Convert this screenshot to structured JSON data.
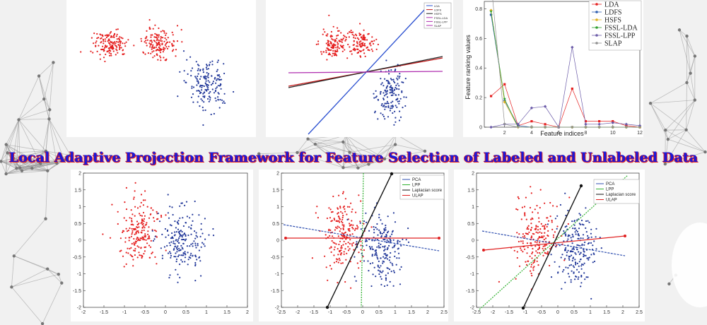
{
  "title": "Local Adaptive Projection Framework for Feature Selection of Labeled and Unlabeled Data",
  "colors": {
    "red": "#e52020",
    "blue": "#23399a",
    "title": "#1a18d8",
    "title_shadow": "#e02020"
  },
  "panels": {
    "p2_legend": [
      "LDA",
      "LDFS",
      "HSFS",
      "FSSL-LDA",
      "FSSL-LPP",
      "SLAP"
    ],
    "p3_legend": [
      "LDA",
      "LDFS",
      "HSFS",
      "FSSL-LDA",
      "FSSL-LPP",
      "SLAP"
    ],
    "p5_legend": [
      "PCA",
      "LPP",
      "Laplacian score",
      "ULAP"
    ],
    "p6_legend": [
      "PCA",
      "LPP",
      "Laplacian score",
      "ULAP"
    ],
    "p4_xticks": [
      "-2",
      "-1.5",
      "-1",
      "-0.5",
      "0",
      "0.5",
      "1",
      "1.5",
      "2"
    ],
    "p4_yticks": [
      "2",
      "1.5",
      "1",
      "0.5",
      "0",
      "-0.5",
      "-1",
      "-1.5",
      "-2"
    ],
    "p5_xticks": [
      "-2.5",
      "-2",
      "-1.5",
      "-1",
      "-0.5",
      "0",
      "0.5",
      "1",
      "1.5",
      "2",
      "2.5"
    ],
    "p5_yticks": [
      "2",
      "1.5",
      "1",
      "0.5",
      "0",
      "-0.5",
      "-1",
      "-1.5",
      "-2"
    ],
    "p6_xticks": [
      "-2.5",
      "-2",
      "-1.5",
      "-1",
      "-0.5",
      "0",
      "0.5",
      "1",
      "1.5",
      "2",
      "2.5"
    ],
    "p6_yticks": [
      "2",
      "1.5",
      "1",
      "0.5",
      "0",
      "-0.5",
      "-1",
      "-1.5",
      "-2"
    ],
    "p3_ylabel": "Feature ranking values",
    "p3_xlabel": "Feature indices",
    "p3_xticks": [
      "2",
      "4",
      "6",
      "8",
      "10",
      "12"
    ],
    "p3_yticks": [
      "0.8",
      "0.6",
      "0.4",
      "0.2",
      "0"
    ]
  },
  "chart_data": [
    {
      "type": "scatter",
      "series": [
        {
          "name": "",
          "color": "#e52020"
        },
        {
          "name": "",
          "color": "#23399a"
        }
      ]
    },
    {
      "type": "scatter",
      "legend": [
        "LDA",
        "LDFS",
        "HSFS",
        "FSSL-LDA",
        "FSSL-LPP",
        "SLAP"
      ]
    },
    {
      "type": "line",
      "xlabel": "Feature indices",
      "ylabel": "Feature ranking values",
      "x": [
        1,
        2,
        3,
        4,
        5,
        6,
        7,
        8,
        9,
        10,
        11,
        12
      ],
      "ylim": [
        0,
        0.85
      ],
      "series": [
        {
          "name": "LDA",
          "values": [
            0.21,
            0.29,
            0.01,
            0.04,
            0.02,
            0.0,
            0.26,
            0.04,
            0.04,
            0.04,
            0.01,
            0.0
          ]
        },
        {
          "name": "LDFS",
          "values": [
            0.76,
            0.18,
            0.01,
            0.0,
            0.0,
            0.0,
            0.0,
            0.0,
            0.0,
            0.0,
            0.0,
            0.0
          ]
        },
        {
          "name": "HSFS",
          "values": [
            0.79,
            0.17,
            0.0,
            0.0,
            0.0,
            0.0,
            0.0,
            0.0,
            0.0,
            0.0,
            0.0,
            0.0
          ]
        },
        {
          "name": "FSSL-LDA",
          "values": [
            0.78,
            0.19,
            0.0,
            0.0,
            0.0,
            0.0,
            0.0,
            0.0,
            0.0,
            0.0,
            0.0,
            0.0
          ]
        },
        {
          "name": "FSSL-LPP",
          "values": [
            0.0,
            0.02,
            0.02,
            0.13,
            0.14,
            0.0,
            0.54,
            0.02,
            0.02,
            0.03,
            0.02,
            0.01
          ]
        },
        {
          "name": "SLAP",
          "values": [
            0.98,
            0.02,
            0.0,
            0.0,
            0.0,
            0.0,
            0.0,
            0.0,
            0.0,
            0.0,
            0.0,
            0.0
          ]
        }
      ]
    },
    {
      "type": "scatter",
      "xlim": [
        -2,
        2
      ],
      "ylim": [
        -2,
        2
      ]
    },
    {
      "type": "scatter",
      "legend": [
        "PCA",
        "LPP",
        "Laplacian score",
        "ULAP"
      ],
      "xlim": [
        -2.5,
        2.5
      ],
      "ylim": [
        -2,
        2
      ]
    },
    {
      "type": "scatter",
      "legend": [
        "PCA",
        "LPP",
        "Laplacian score",
        "ULAP"
      ],
      "xlim": [
        -2.5,
        2.5
      ],
      "ylim": [
        -2,
        2
      ]
    }
  ]
}
